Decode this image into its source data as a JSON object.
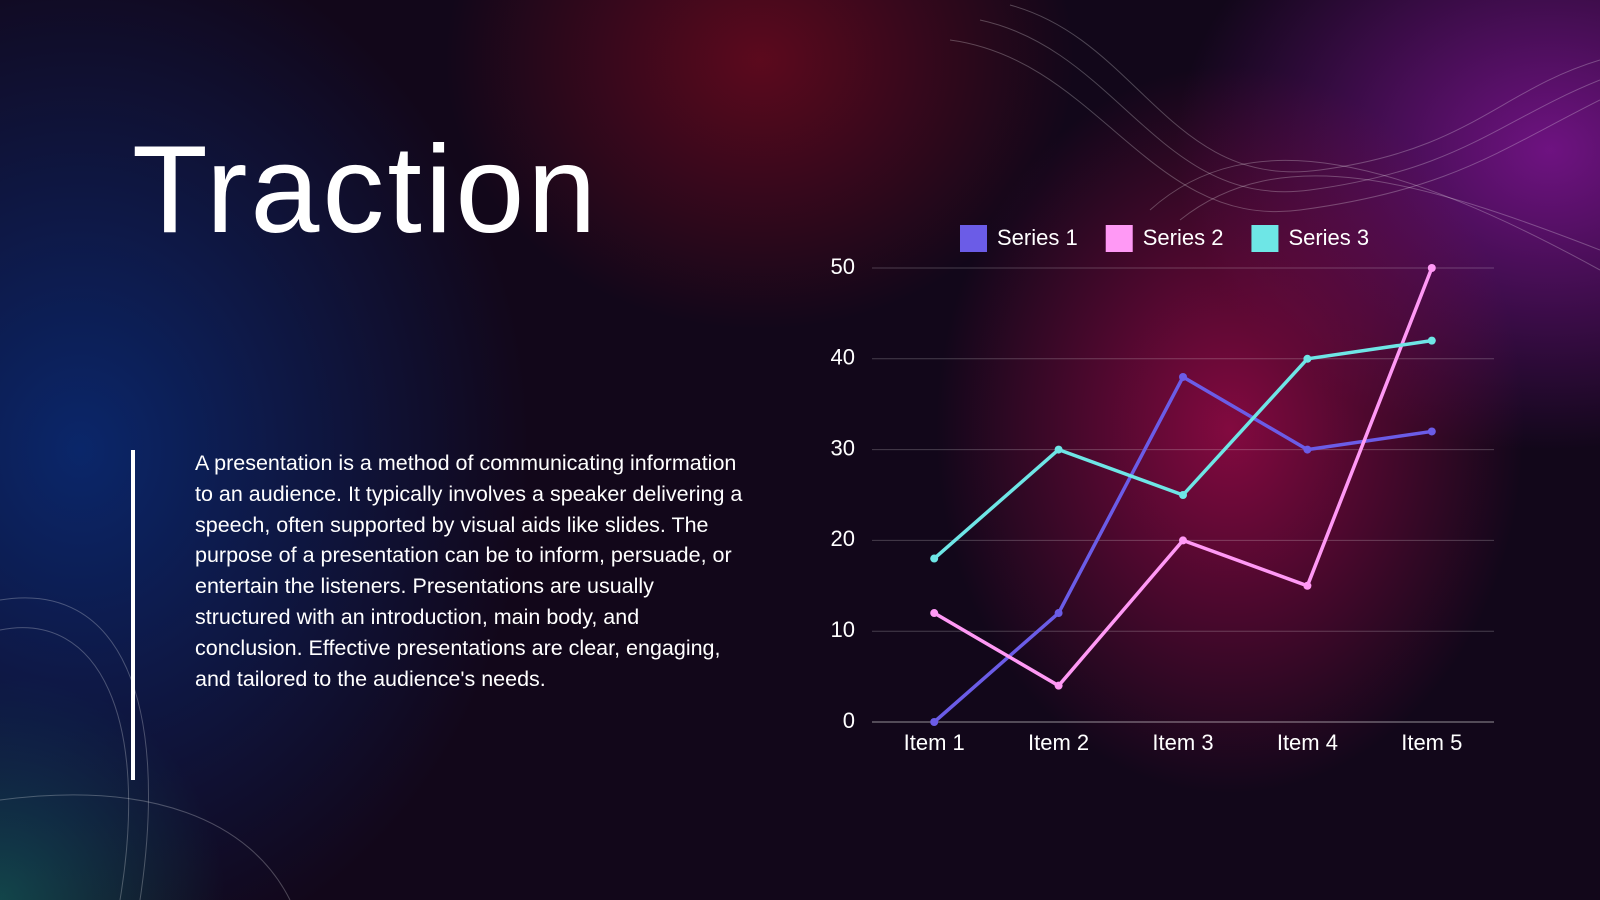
{
  "title": "Traction",
  "body": "A presentation is a method of communicating information to an audience. It typically involves a speaker delivering a speech, often supported by visual aids like slides. The purpose of a presentation can be to inform, persuade, or entertain the listeners. Presentations are usually structured with an introduction, main body, and conclusion. Effective presentations are clear, engaging, and tailored to the audience's needs.",
  "chart_data": {
    "type": "line",
    "categories": [
      "Item 1",
      "Item 2",
      "Item 3",
      "Item 4",
      "Item 5"
    ],
    "series": [
      {
        "name": "Series 1",
        "color": "#6b5ce7",
        "values": [
          0,
          12,
          38,
          30,
          32
        ]
      },
      {
        "name": "Series 2",
        "color": "#ff99f5",
        "values": [
          12,
          4,
          20,
          15,
          50
        ]
      },
      {
        "name": "Series 3",
        "color": "#6ee6e6",
        "values": [
          18,
          30,
          25,
          40,
          42
        ]
      }
    ],
    "ylim": [
      0,
      50
    ],
    "yticks": [
      0,
      10,
      20,
      30,
      40,
      50
    ],
    "grid": true,
    "legend": "top"
  }
}
